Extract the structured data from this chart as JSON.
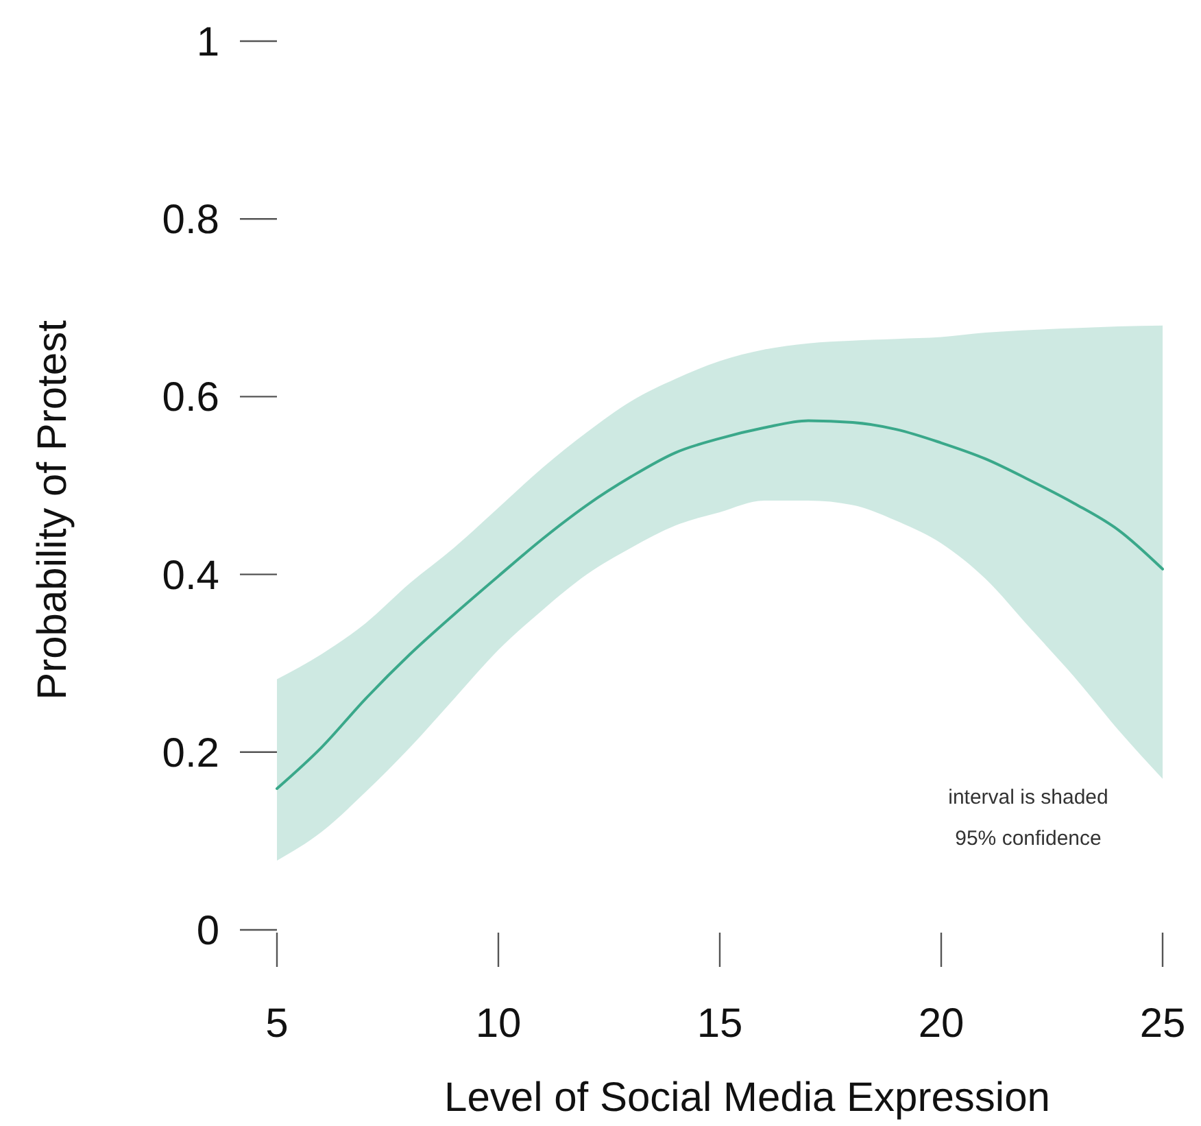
{
  "chart_data": {
    "type": "line",
    "xlabel": "Level of Social Media Expression",
    "ylabel": "Probability of Protest",
    "x": [
      5,
      6,
      7,
      8,
      9,
      10,
      11,
      12,
      13,
      14,
      15,
      16,
      17,
      18,
      19,
      20,
      21,
      22,
      23,
      24,
      25
    ],
    "series": [
      {
        "color": "#3aa88a",
        "values": [
          0.159,
          0.205,
          0.26,
          0.31,
          0.355,
          0.398,
          0.44,
          0.478,
          0.51,
          0.537,
          0.553,
          0.565,
          0.573,
          0.571,
          0.563,
          0.548,
          0.53,
          0.506,
          0.48,
          0.45,
          0.406
        ],
        "lower": [
          0.078,
          0.11,
          0.155,
          0.205,
          0.26,
          0.315,
          0.36,
          0.4,
          0.43,
          0.455,
          0.47,
          0.483,
          0.483,
          0.478,
          0.46,
          0.435,
          0.395,
          0.34,
          0.285,
          0.225,
          0.17
        ],
        "upper": [
          0.282,
          0.31,
          0.345,
          0.39,
          0.43,
          0.475,
          0.52,
          0.56,
          0.595,
          0.62,
          0.64,
          0.653,
          0.66,
          0.663,
          0.665,
          0.667,
          0.672,
          0.675,
          0.677,
          0.679,
          0.68
        ]
      }
    ],
    "xlim": [
      5,
      25
    ],
    "xticks": [
      5,
      10,
      15,
      20,
      25
    ],
    "ylim": [
      0,
      1
    ],
    "yticks": [
      0,
      0.2,
      0.4,
      0.6,
      0.8,
      1
    ],
    "grid": false,
    "annotations": [
      "interval is shaded",
      "95% confidence"
    ]
  }
}
